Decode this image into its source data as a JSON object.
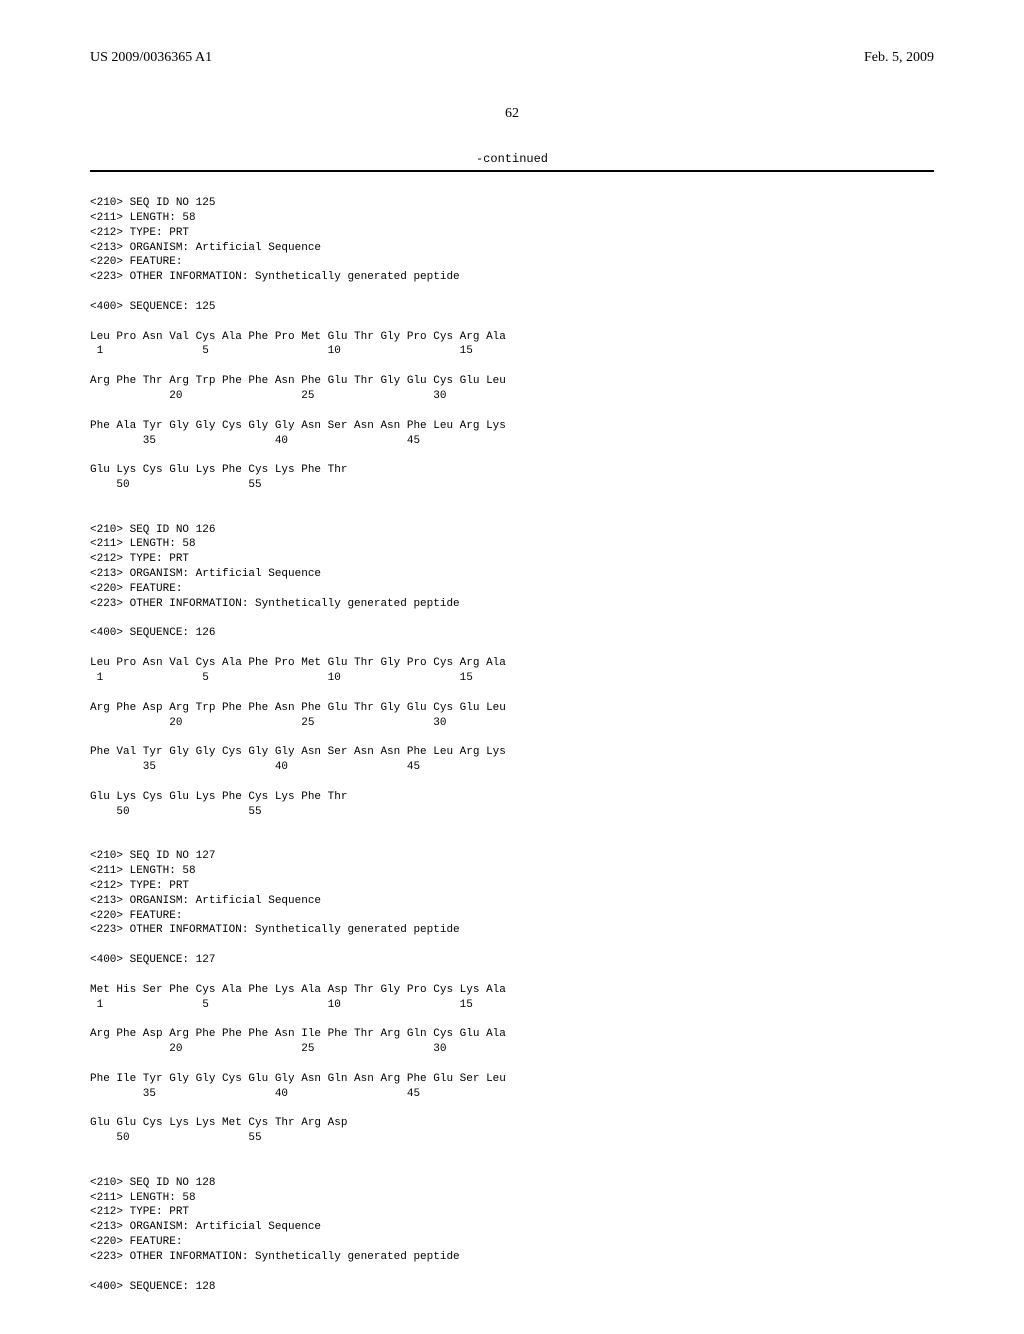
{
  "header": {
    "pubno": "US 2009/0036365 A1",
    "date": "Feb. 5, 2009"
  },
  "pagenum": "62",
  "continued": "-continued",
  "seq": "<210> SEQ ID NO 125\n<211> LENGTH: 58\n<212> TYPE: PRT\n<213> ORGANISM: Artificial Sequence\n<220> FEATURE:\n<223> OTHER INFORMATION: Synthetically generated peptide\n\n<400> SEQUENCE: 125\n\nLeu Pro Asn Val Cys Ala Phe Pro Met Glu Thr Gly Pro Cys Arg Ala\n 1               5                  10                  15\n\nArg Phe Thr Arg Trp Phe Phe Asn Phe Glu Thr Gly Glu Cys Glu Leu\n            20                  25                  30\n\nPhe Ala Tyr Gly Gly Cys Gly Gly Asn Ser Asn Asn Phe Leu Arg Lys\n        35                  40                  45\n\nGlu Lys Cys Glu Lys Phe Cys Lys Phe Thr\n    50                  55\n\n\n<210> SEQ ID NO 126\n<211> LENGTH: 58\n<212> TYPE: PRT\n<213> ORGANISM: Artificial Sequence\n<220> FEATURE:\n<223> OTHER INFORMATION: Synthetically generated peptide\n\n<400> SEQUENCE: 126\n\nLeu Pro Asn Val Cys Ala Phe Pro Met Glu Thr Gly Pro Cys Arg Ala\n 1               5                  10                  15\n\nArg Phe Asp Arg Trp Phe Phe Asn Phe Glu Thr Gly Glu Cys Glu Leu\n            20                  25                  30\n\nPhe Val Tyr Gly Gly Cys Gly Gly Asn Ser Asn Asn Phe Leu Arg Lys\n        35                  40                  45\n\nGlu Lys Cys Glu Lys Phe Cys Lys Phe Thr\n    50                  55\n\n\n<210> SEQ ID NO 127\n<211> LENGTH: 58\n<212> TYPE: PRT\n<213> ORGANISM: Artificial Sequence\n<220> FEATURE:\n<223> OTHER INFORMATION: Synthetically generated peptide\n\n<400> SEQUENCE: 127\n\nMet His Ser Phe Cys Ala Phe Lys Ala Asp Thr Gly Pro Cys Lys Ala\n 1               5                  10                  15\n\nArg Phe Asp Arg Phe Phe Phe Asn Ile Phe Thr Arg Gln Cys Glu Ala\n            20                  25                  30\n\nPhe Ile Tyr Gly Gly Cys Glu Gly Asn Gln Asn Arg Phe Glu Ser Leu\n        35                  40                  45\n\nGlu Glu Cys Lys Lys Met Cys Thr Arg Asp\n    50                  55\n\n\n<210> SEQ ID NO 128\n<211> LENGTH: 58\n<212> TYPE: PRT\n<213> ORGANISM: Artificial Sequence\n<220> FEATURE:\n<223> OTHER INFORMATION: Synthetically generated peptide\n\n<400> SEQUENCE: 128"
}
